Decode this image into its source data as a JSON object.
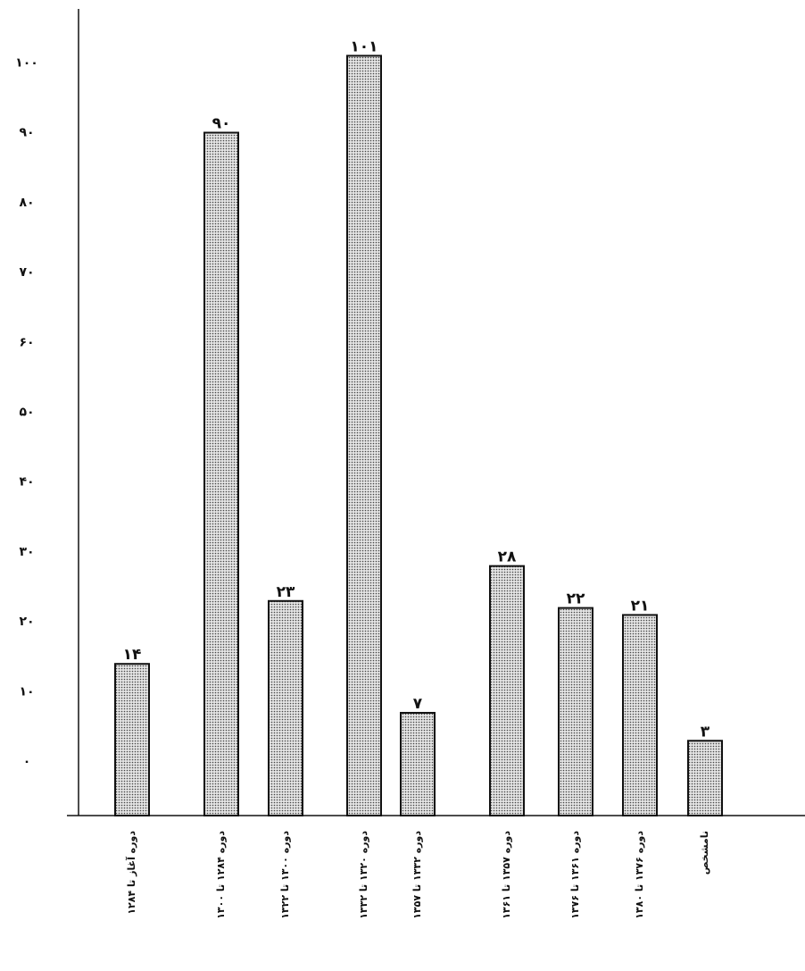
{
  "chart_data": {
    "type": "bar",
    "categories": [
      "دوره آغاز تا ۱۲۸۴",
      "دوره ۱۲۸۴ تا ۱۳۰۰",
      "دوره ۱۳۰۰ تا ۱۳۲۲",
      "دوره ۱۳۲۰ تا ۱۳۳۲",
      "دوره ۱۳۳۲ تا ۱۳۵۷",
      "دوره ۱۳۵۷ تا ۱۳۶۱",
      "دوره ۱۳۶۱ تا ۱۳۷۶",
      "دوره ۱۳۷۶ تا ۱۳۸۰",
      "نامشخص"
    ],
    "values": [
      14,
      90,
      23,
      101,
      7,
      28,
      22,
      21,
      3
    ],
    "value_labels": [
      "۱۴",
      "۹۰",
      "۲۳",
      "۱۰۱",
      "۷",
      "۲۸",
      "۲۲",
      "۲۱",
      "۳"
    ],
    "color": "#d9d9d9",
    "ylim": [
      -7.7,
      107.7
    ],
    "yticks": [
      {
        "value": 0,
        "label": "۰"
      },
      {
        "value": 10,
        "label": "۱۰"
      },
      {
        "value": 20,
        "label": "۲۰"
      },
      {
        "value": 30,
        "label": "۳۰"
      },
      {
        "value": 40,
        "label": "۴۰"
      },
      {
        "value": 50,
        "label": "۵۰"
      },
      {
        "value": 60,
        "label": "۶۰"
      },
      {
        "value": 70,
        "label": "۷۰"
      },
      {
        "value": 80,
        "label": "۸۰"
      },
      {
        "value": 90,
        "label": "۹۰"
      },
      {
        "value": 100,
        "label": "۱۰۰"
      }
    ],
    "grid": false
  }
}
